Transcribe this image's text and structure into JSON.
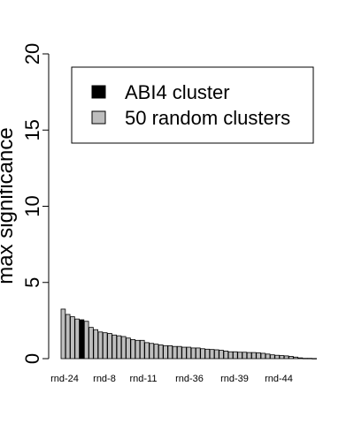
{
  "chart_data": {
    "type": "bar",
    "ylabel": "max significance",
    "ylim": [
      0,
      20
    ],
    "yticks": [
      0,
      5,
      10,
      15,
      20
    ],
    "shown_category_labels": [
      "rnd-24",
      "rnd-8",
      "rnd-11",
      "rnd-36",
      "rnd-39",
      "rnd-44"
    ],
    "series": [
      {
        "name": "ABI4 cluster",
        "color": "#000000"
      },
      {
        "name": "50 random clusters",
        "color": "#bebebe"
      }
    ],
    "legend": {
      "position": "top-right"
    },
    "highlight_index": 4,
    "values": [
      3.25,
      2.9,
      2.75,
      2.6,
      2.55,
      2.45,
      2.05,
      1.9,
      1.75,
      1.7,
      1.65,
      1.55,
      1.5,
      1.45,
      1.35,
      1.25,
      1.2,
      1.2,
      1.05,
      1.0,
      0.95,
      0.9,
      0.85,
      0.85,
      0.8,
      0.8,
      0.75,
      0.75,
      0.7,
      0.7,
      0.65,
      0.62,
      0.6,
      0.58,
      0.55,
      0.5,
      0.45,
      0.45,
      0.42,
      0.42,
      0.4,
      0.4,
      0.38,
      0.35,
      0.3,
      0.25,
      0.22,
      0.2,
      0.18,
      0.15,
      0.1,
      0.05,
      0.02,
      0.02,
      0.01
    ]
  }
}
